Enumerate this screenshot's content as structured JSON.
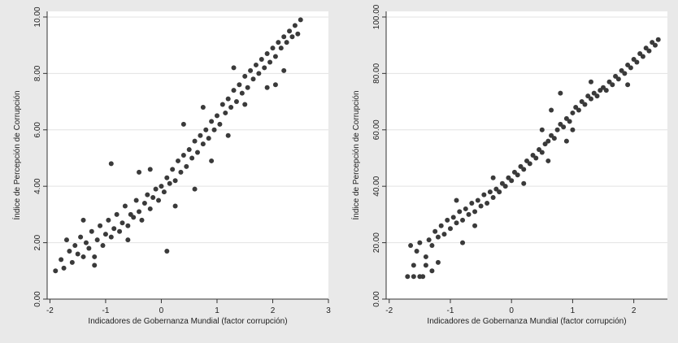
{
  "chart_data": [
    {
      "type": "scatter",
      "title": "",
      "xlabel": "Indicadores de Gobernanza Mundial (factor corrupción)",
      "ylabel": "Índice de Percepción de Corrupción",
      "xlim": [
        -2.05,
        3.0
      ],
      "ylim": [
        0,
        10.2
      ],
      "xticks": [
        -2,
        -1,
        0,
        1,
        2,
        3
      ],
      "xtick_labels": [
        "-2",
        "-1",
        "0",
        "1",
        "2",
        "3"
      ],
      "yticks": [
        0,
        2,
        4,
        6,
        8,
        10
      ],
      "ytick_labels": [
        "0.00",
        "2.00",
        "4.00",
        "6.00",
        "8.00",
        "10.00"
      ],
      "grid": "horizontal",
      "marker_color": "#3a3a3a",
      "points": [
        [
          -1.9,
          1.0
        ],
        [
          -1.8,
          1.4
        ],
        [
          -1.75,
          1.1
        ],
        [
          -1.7,
          2.1
        ],
        [
          -1.65,
          1.7
        ],
        [
          -1.6,
          1.3
        ],
        [
          -1.55,
          1.9
        ],
        [
          -1.5,
          1.6
        ],
        [
          -1.45,
          2.2
        ],
        [
          -1.4,
          1.5
        ],
        [
          -1.35,
          2.0
        ],
        [
          -1.3,
          1.8
        ],
        [
          -1.25,
          2.4
        ],
        [
          -1.2,
          1.2
        ],
        [
          -1.15,
          2.1
        ],
        [
          -1.1,
          2.6
        ],
        [
          -1.05,
          1.9
        ],
        [
          -1.0,
          2.3
        ],
        [
          -0.95,
          2.8
        ],
        [
          -0.9,
          2.2
        ],
        [
          -0.85,
          2.5
        ],
        [
          -0.8,
          3.0
        ],
        [
          -0.75,
          2.4
        ],
        [
          -0.7,
          2.7
        ],
        [
          -0.65,
          3.3
        ],
        [
          -0.6,
          2.6
        ],
        [
          -0.55,
          3.0
        ],
        [
          -0.5,
          2.9
        ],
        [
          -0.45,
          3.5
        ],
        [
          -0.4,
          3.1
        ],
        [
          -0.35,
          2.8
        ],
        [
          -0.3,
          3.4
        ],
        [
          -0.25,
          3.7
        ],
        [
          -0.2,
          3.2
        ],
        [
          -0.15,
          3.6
        ],
        [
          -0.1,
          3.9
        ],
        [
          -0.05,
          3.5
        ],
        [
          0.0,
          4.0
        ],
        [
          0.05,
          3.8
        ],
        [
          0.1,
          4.3
        ],
        [
          0.15,
          4.1
        ],
        [
          0.2,
          4.6
        ],
        [
          0.25,
          4.2
        ],
        [
          0.3,
          4.9
        ],
        [
          0.35,
          4.5
        ],
        [
          0.4,
          5.1
        ],
        [
          0.45,
          4.7
        ],
        [
          0.5,
          5.3
        ],
        [
          0.55,
          5.0
        ],
        [
          0.6,
          5.6
        ],
        [
          0.65,
          5.2
        ],
        [
          0.7,
          5.8
        ],
        [
          0.75,
          5.5
        ],
        [
          0.8,
          6.0
        ],
        [
          0.85,
          5.7
        ],
        [
          0.9,
          6.3
        ],
        [
          0.95,
          6.0
        ],
        [
          1.0,
          6.5
        ],
        [
          1.05,
          6.2
        ],
        [
          1.1,
          6.9
        ],
        [
          1.15,
          6.6
        ],
        [
          1.2,
          7.1
        ],
        [
          1.25,
          6.8
        ],
        [
          1.3,
          7.4
        ],
        [
          1.35,
          7.0
        ],
        [
          1.4,
          7.6
        ],
        [
          1.45,
          7.3
        ],
        [
          1.5,
          7.9
        ],
        [
          1.55,
          7.5
        ],
        [
          1.6,
          8.1
        ],
        [
          1.65,
          7.8
        ],
        [
          1.7,
          8.3
        ],
        [
          1.75,
          8.0
        ],
        [
          1.8,
          8.5
        ],
        [
          1.85,
          8.2
        ],
        [
          1.9,
          8.7
        ],
        [
          1.95,
          8.4
        ],
        [
          2.0,
          8.9
        ],
        [
          2.05,
          8.6
        ],
        [
          2.1,
          9.1
        ],
        [
          2.15,
          8.9
        ],
        [
          2.2,
          9.3
        ],
        [
          2.25,
          9.1
        ],
        [
          2.3,
          9.5
        ],
        [
          2.35,
          9.3
        ],
        [
          2.4,
          9.7
        ],
        [
          2.45,
          9.4
        ],
        [
          2.5,
          9.9
        ],
        [
          -0.9,
          4.8
        ],
        [
          -0.4,
          4.5
        ],
        [
          0.1,
          1.7
        ],
        [
          0.6,
          3.9
        ],
        [
          1.2,
          5.8
        ],
        [
          1.9,
          7.5
        ],
        [
          2.05,
          7.6
        ],
        [
          -1.4,
          2.8
        ],
        [
          -0.2,
          4.6
        ],
        [
          0.4,
          6.2
        ],
        [
          0.9,
          4.9
        ],
        [
          1.5,
          6.9
        ],
        [
          -1.2,
          1.5
        ],
        [
          -0.6,
          2.1
        ],
        [
          0.25,
          3.3
        ],
        [
          0.75,
          6.8
        ],
        [
          1.3,
          8.2
        ],
        [
          2.2,
          8.1
        ]
      ]
    },
    {
      "type": "scatter",
      "title": "",
      "xlabel": "Indicadores de Gobernanza Mundial (factor corrupción)",
      "ylabel": "Índice de Percepción de Corrupción",
      "xlim": [
        -2.05,
        2.55
      ],
      "ylim": [
        0,
        102
      ],
      "xticks": [
        -2,
        -1,
        0,
        1,
        2
      ],
      "xtick_labels": [
        "-2",
        "-1",
        "0",
        "1",
        "2"
      ],
      "yticks": [
        0,
        20,
        40,
        60,
        80,
        100
      ],
      "ytick_labels": [
        "0.00",
        "20.00",
        "40.00",
        "60.00",
        "80.00",
        "100.00"
      ],
      "grid": "horizontal",
      "marker_color": "#3a3a3a",
      "points": [
        [
          -1.7,
          8
        ],
        [
          -1.6,
          8
        ],
        [
          -1.5,
          8
        ],
        [
          -1.45,
          8
        ],
        [
          -1.6,
          12
        ],
        [
          -1.55,
          17
        ],
        [
          -1.65,
          19
        ],
        [
          -1.5,
          20
        ],
        [
          -1.4,
          15
        ],
        [
          -1.35,
          21
        ],
        [
          -1.3,
          19
        ],
        [
          -1.25,
          24
        ],
        [
          -1.2,
          22
        ],
        [
          -1.15,
          26
        ],
        [
          -1.1,
          23
        ],
        [
          -1.05,
          28
        ],
        [
          -1.0,
          25
        ],
        [
          -0.95,
          29
        ],
        [
          -0.9,
          27
        ],
        [
          -0.85,
          31
        ],
        [
          -0.8,
          28
        ],
        [
          -0.75,
          32
        ],
        [
          -0.7,
          30
        ],
        [
          -0.65,
          34
        ],
        [
          -0.6,
          31
        ],
        [
          -0.55,
          35
        ],
        [
          -0.5,
          33
        ],
        [
          -0.45,
          37
        ],
        [
          -0.4,
          34
        ],
        [
          -0.35,
          38
        ],
        [
          -0.3,
          36
        ],
        [
          -0.25,
          39
        ],
        [
          -0.2,
          38
        ],
        [
          -0.15,
          41
        ],
        [
          -0.1,
          40
        ],
        [
          -0.05,
          43
        ],
        [
          0.0,
          42
        ],
        [
          0.05,
          45
        ],
        [
          0.1,
          44
        ],
        [
          0.15,
          47
        ],
        [
          0.2,
          46
        ],
        [
          0.25,
          49
        ],
        [
          0.3,
          48
        ],
        [
          0.35,
          51
        ],
        [
          0.4,
          50
        ],
        [
          0.45,
          53
        ],
        [
          0.5,
          52
        ],
        [
          0.55,
          55
        ],
        [
          0.6,
          56
        ],
        [
          0.65,
          58
        ],
        [
          0.7,
          57
        ],
        [
          0.75,
          60
        ],
        [
          0.8,
          62
        ],
        [
          0.85,
          61
        ],
        [
          0.9,
          64
        ],
        [
          0.95,
          63
        ],
        [
          1.0,
          66
        ],
        [
          1.05,
          68
        ],
        [
          1.1,
          67
        ],
        [
          1.15,
          70
        ],
        [
          1.2,
          69
        ],
        [
          1.25,
          72
        ],
        [
          1.3,
          71
        ],
        [
          1.35,
          73
        ],
        [
          1.4,
          72
        ],
        [
          1.45,
          74
        ],
        [
          1.5,
          75
        ],
        [
          1.55,
          74
        ],
        [
          1.6,
          77
        ],
        [
          1.65,
          76
        ],
        [
          1.7,
          79
        ],
        [
          1.75,
          78
        ],
        [
          1.8,
          81
        ],
        [
          1.85,
          80
        ],
        [
          1.9,
          83
        ],
        [
          1.95,
          82
        ],
        [
          2.0,
          85
        ],
        [
          2.05,
          84
        ],
        [
          2.1,
          87
        ],
        [
          2.15,
          86
        ],
        [
          2.2,
          89
        ],
        [
          2.25,
          88
        ],
        [
          2.3,
          91
        ],
        [
          2.35,
          90
        ],
        [
          2.4,
          92
        ],
        [
          -1.3,
          10
        ],
        [
          -1.4,
          12
        ],
        [
          -1.2,
          13
        ],
        [
          -0.8,
          20
        ],
        [
          -0.9,
          35
        ],
        [
          -0.6,
          26
        ],
        [
          -0.3,
          43
        ],
        [
          0.2,
          41
        ],
        [
          0.5,
          60
        ],
        [
          0.6,
          49
        ],
        [
          0.9,
          56
        ],
        [
          0.65,
          67
        ],
        [
          1.3,
          77
        ],
        [
          1.9,
          76
        ],
        [
          0.8,
          73
        ],
        [
          1.0,
          60
        ]
      ]
    }
  ]
}
